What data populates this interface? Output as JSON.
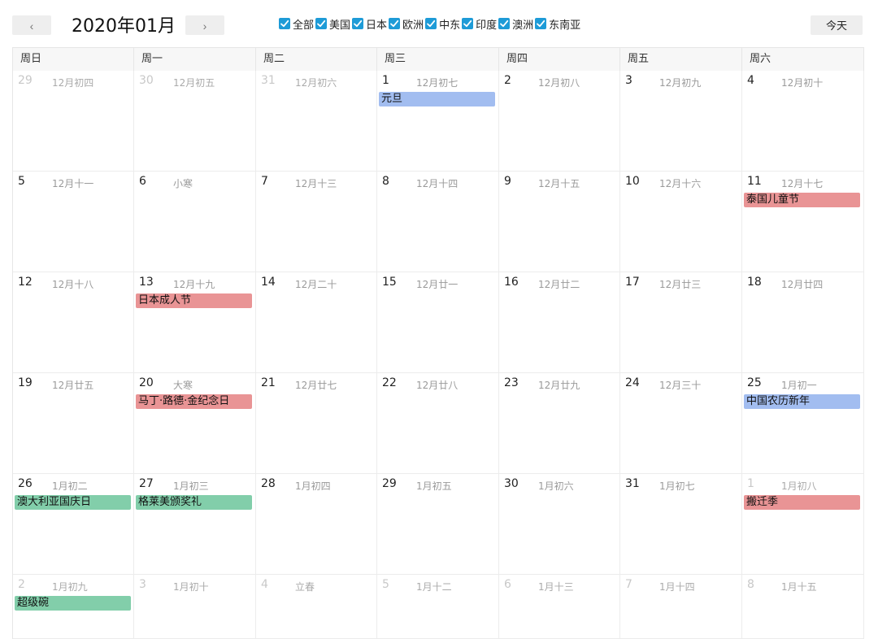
{
  "header": {
    "prev_label": "‹",
    "next_label": "›",
    "title": "2020年01月",
    "today_label": "今天",
    "filters": [
      {
        "label": "全部",
        "checked": true
      },
      {
        "label": "美国",
        "checked": true
      },
      {
        "label": "日本",
        "checked": true
      },
      {
        "label": "欧洲",
        "checked": true
      },
      {
        "label": "中东",
        "checked": true
      },
      {
        "label": "印度",
        "checked": true
      },
      {
        "label": "澳洲",
        "checked": true
      },
      {
        "label": "东南亚",
        "checked": true
      }
    ]
  },
  "colors": {
    "check": "#1e9bd7",
    "event_blue": "#a2bdf0",
    "event_red": "#e99495",
    "event_green": "#82ceaa"
  },
  "weekdays": [
    "周日",
    "周一",
    "周二",
    "周三",
    "周四",
    "周五",
    "周六"
  ],
  "weeks": [
    [
      {
        "day": "29",
        "lunar": "12月初四",
        "other": true
      },
      {
        "day": "30",
        "lunar": "12月初五",
        "other": true
      },
      {
        "day": "31",
        "lunar": "12月初六",
        "other": true
      },
      {
        "day": "1",
        "lunar": "12月初七",
        "event": {
          "label": "元旦",
          "color": "blue"
        }
      },
      {
        "day": "2",
        "lunar": "12月初八"
      },
      {
        "day": "3",
        "lunar": "12月初九"
      },
      {
        "day": "4",
        "lunar": "12月初十"
      }
    ],
    [
      {
        "day": "5",
        "lunar": "12月十一"
      },
      {
        "day": "6",
        "lunar": "小寒"
      },
      {
        "day": "7",
        "lunar": "12月十三"
      },
      {
        "day": "8",
        "lunar": "12月十四"
      },
      {
        "day": "9",
        "lunar": "12月十五"
      },
      {
        "day": "10",
        "lunar": "12月十六"
      },
      {
        "day": "11",
        "lunar": "12月十七",
        "event": {
          "label": "泰国儿童节",
          "color": "red"
        }
      }
    ],
    [
      {
        "day": "12",
        "lunar": "12月十八"
      },
      {
        "day": "13",
        "lunar": "12月十九",
        "event": {
          "label": "日本成人节",
          "color": "red"
        }
      },
      {
        "day": "14",
        "lunar": "12月二十"
      },
      {
        "day": "15",
        "lunar": "12月廿一"
      },
      {
        "day": "16",
        "lunar": "12月廿二"
      },
      {
        "day": "17",
        "lunar": "12月廿三"
      },
      {
        "day": "18",
        "lunar": "12月廿四"
      }
    ],
    [
      {
        "day": "19",
        "lunar": "12月廿五"
      },
      {
        "day": "20",
        "lunar": "大寒",
        "event": {
          "label": "马丁·路德·金纪念日",
          "color": "red"
        }
      },
      {
        "day": "21",
        "lunar": "12月廿七"
      },
      {
        "day": "22",
        "lunar": "12月廿八"
      },
      {
        "day": "23",
        "lunar": "12月廿九"
      },
      {
        "day": "24",
        "lunar": "12月三十"
      },
      {
        "day": "25",
        "lunar": "1月初一",
        "event": {
          "label": "中国农历新年",
          "color": "blue"
        }
      }
    ],
    [
      {
        "day": "26",
        "lunar": "1月初二",
        "event": {
          "label": "澳大利亚国庆日",
          "color": "green"
        }
      },
      {
        "day": "27",
        "lunar": "1月初三",
        "event": {
          "label": "格莱美颁奖礼",
          "color": "green"
        }
      },
      {
        "day": "28",
        "lunar": "1月初四"
      },
      {
        "day": "29",
        "lunar": "1月初五"
      },
      {
        "day": "30",
        "lunar": "1月初六"
      },
      {
        "day": "31",
        "lunar": "1月初七"
      },
      {
        "day": "1",
        "lunar": "1月初八",
        "other": true,
        "event": {
          "label": "搬迁季",
          "color": "red"
        }
      }
    ],
    [
      {
        "day": "2",
        "lunar": "1月初九",
        "other": true,
        "event": {
          "label": "超级碗",
          "color": "green"
        }
      },
      {
        "day": "3",
        "lunar": "1月初十",
        "other": true
      },
      {
        "day": "4",
        "lunar": "立春",
        "other": true
      },
      {
        "day": "5",
        "lunar": "1月十二",
        "other": true
      },
      {
        "day": "6",
        "lunar": "1月十三",
        "other": true
      },
      {
        "day": "7",
        "lunar": "1月十四",
        "other": true
      },
      {
        "day": "8",
        "lunar": "1月十五",
        "other": true
      }
    ]
  ]
}
